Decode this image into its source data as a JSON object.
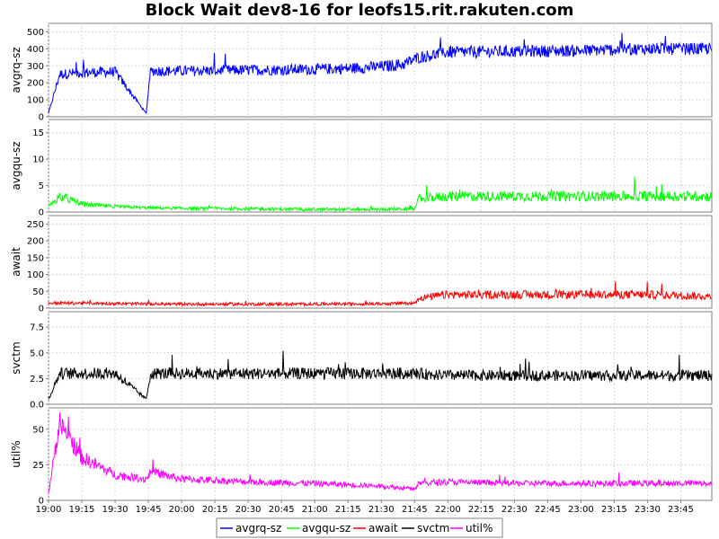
{
  "chart_data": {
    "type": "line",
    "title": "Block Wait dev8-16 for leofs15.rit.rakuten.com",
    "x_labels": [
      "19:00",
      "19:15",
      "19:30",
      "19:45",
      "20:00",
      "20:15",
      "20:30",
      "20:45",
      "21:00",
      "21:15",
      "21:30",
      "21:45",
      "22:00",
      "22:15",
      "22:30",
      "22:45",
      "23:00",
      "23:15",
      "23:30",
      "23:45"
    ],
    "x_start_minutes": 1140,
    "x_end_minutes": 1439,
    "grid": true,
    "legend_position": "bottom",
    "panels": [
      {
        "ylabel": "avgrq-sz",
        "ylim": [
          0,
          550
        ],
        "yticks": [
          0,
          100,
          200,
          300,
          400,
          500
        ],
        "series": [
          {
            "name": "avgrq-sz",
            "color": "#0000ff",
            "x": [
              "19:00",
              "19:05",
              "19:15",
              "19:30",
              "19:44",
              "19:46",
              "20:00",
              "20:30",
              "21:00",
              "21:15",
              "21:30",
              "21:40",
              "21:47",
              "22:00",
              "22:30",
              "23:00",
              "23:30",
              "23:59"
            ],
            "y": [
              20,
              250,
              260,
              265,
              20,
              270,
              270,
              275,
              280,
              285,
              295,
              310,
              350,
              380,
              385,
              390,
              400,
              400
            ],
            "noise": 45
          }
        ]
      },
      {
        "ylabel": "avgqu-sz",
        "ylim": [
          0,
          17.5
        ],
        "yticks": [
          0,
          5,
          10,
          15
        ],
        "series": [
          {
            "name": "avgqu-sz",
            "color": "#00ff00",
            "x": [
              "19:00",
              "19:05",
              "19:15",
              "19:30",
              "19:45",
              "20:00",
              "20:30",
              "21:00",
              "21:30",
              "21:45",
              "21:47",
              "22:00",
              "22:30",
              "23:00",
              "23:30",
              "23:59"
            ],
            "y": [
              1,
              3,
              1.5,
              1,
              0.8,
              0.7,
              0.6,
              0.5,
              0.5,
              0.6,
              2.5,
              3,
              3,
              3,
              3,
              3
            ],
            "noise": 4
          }
        ]
      },
      {
        "ylabel": "await",
        "ylim": [
          0,
          275
        ],
        "yticks": [
          0,
          50,
          100,
          150,
          200,
          250
        ],
        "series": [
          {
            "name": "await",
            "color": "#ff0000",
            "x": [
              "19:00",
              "19:15",
              "19:45",
              "20:00",
              "20:30",
              "21:00",
              "21:30",
              "21:45",
              "21:47",
              "22:00",
              "22:30",
              "23:00",
              "23:30",
              "23:59"
            ],
            "y": [
              15,
              15,
              12,
              12,
              12,
              12,
              13,
              15,
              30,
              40,
              40,
              40,
              40,
              35
            ],
            "noise": 60
          }
        ]
      },
      {
        "ylabel": "svctm",
        "ylim": [
          0,
          9
        ],
        "yticks": [
          0.0,
          2.5,
          5.0,
          7.5
        ],
        "series": [
          {
            "name": "svctm",
            "color": "#000000",
            "x": [
              "19:00",
              "19:05",
              "19:30",
              "19:44",
              "19:46",
              "20:00",
              "20:30",
              "21:00",
              "21:30",
              "21:45",
              "22:00",
              "22:30",
              "23:00",
              "23:30",
              "23:59"
            ],
            "y": [
              0.5,
              3,
              3,
              0.5,
              3,
              3,
              3,
              3,
              3,
              3,
              2.8,
              2.8,
              2.8,
              2.8,
              2.8
            ],
            "noise": 1.2
          }
        ]
      },
      {
        "ylabel": "util%",
        "ylim": [
          0,
          65
        ],
        "yticks": [
          0,
          25,
          50
        ],
        "series": [
          {
            "name": "util%",
            "color": "#ff00ff",
            "x": [
              "19:00",
              "19:05",
              "19:15",
              "19:30",
              "19:44",
              "19:46",
              "20:00",
              "20:30",
              "21:00",
              "21:30",
              "21:45",
              "21:47",
              "22:00",
              "22:30",
              "23:00",
              "23:30",
              "23:59"
            ],
            "y": [
              5,
              55,
              30,
              18,
              15,
              20,
              15,
              13,
              12,
              10,
              8,
              12,
              13,
              12,
              12,
              12,
              12
            ],
            "noise": 8
          }
        ]
      }
    ],
    "legend": [
      "avgrq-sz",
      "avgqu-sz",
      "await",
      "svctm",
      "util%"
    ]
  }
}
